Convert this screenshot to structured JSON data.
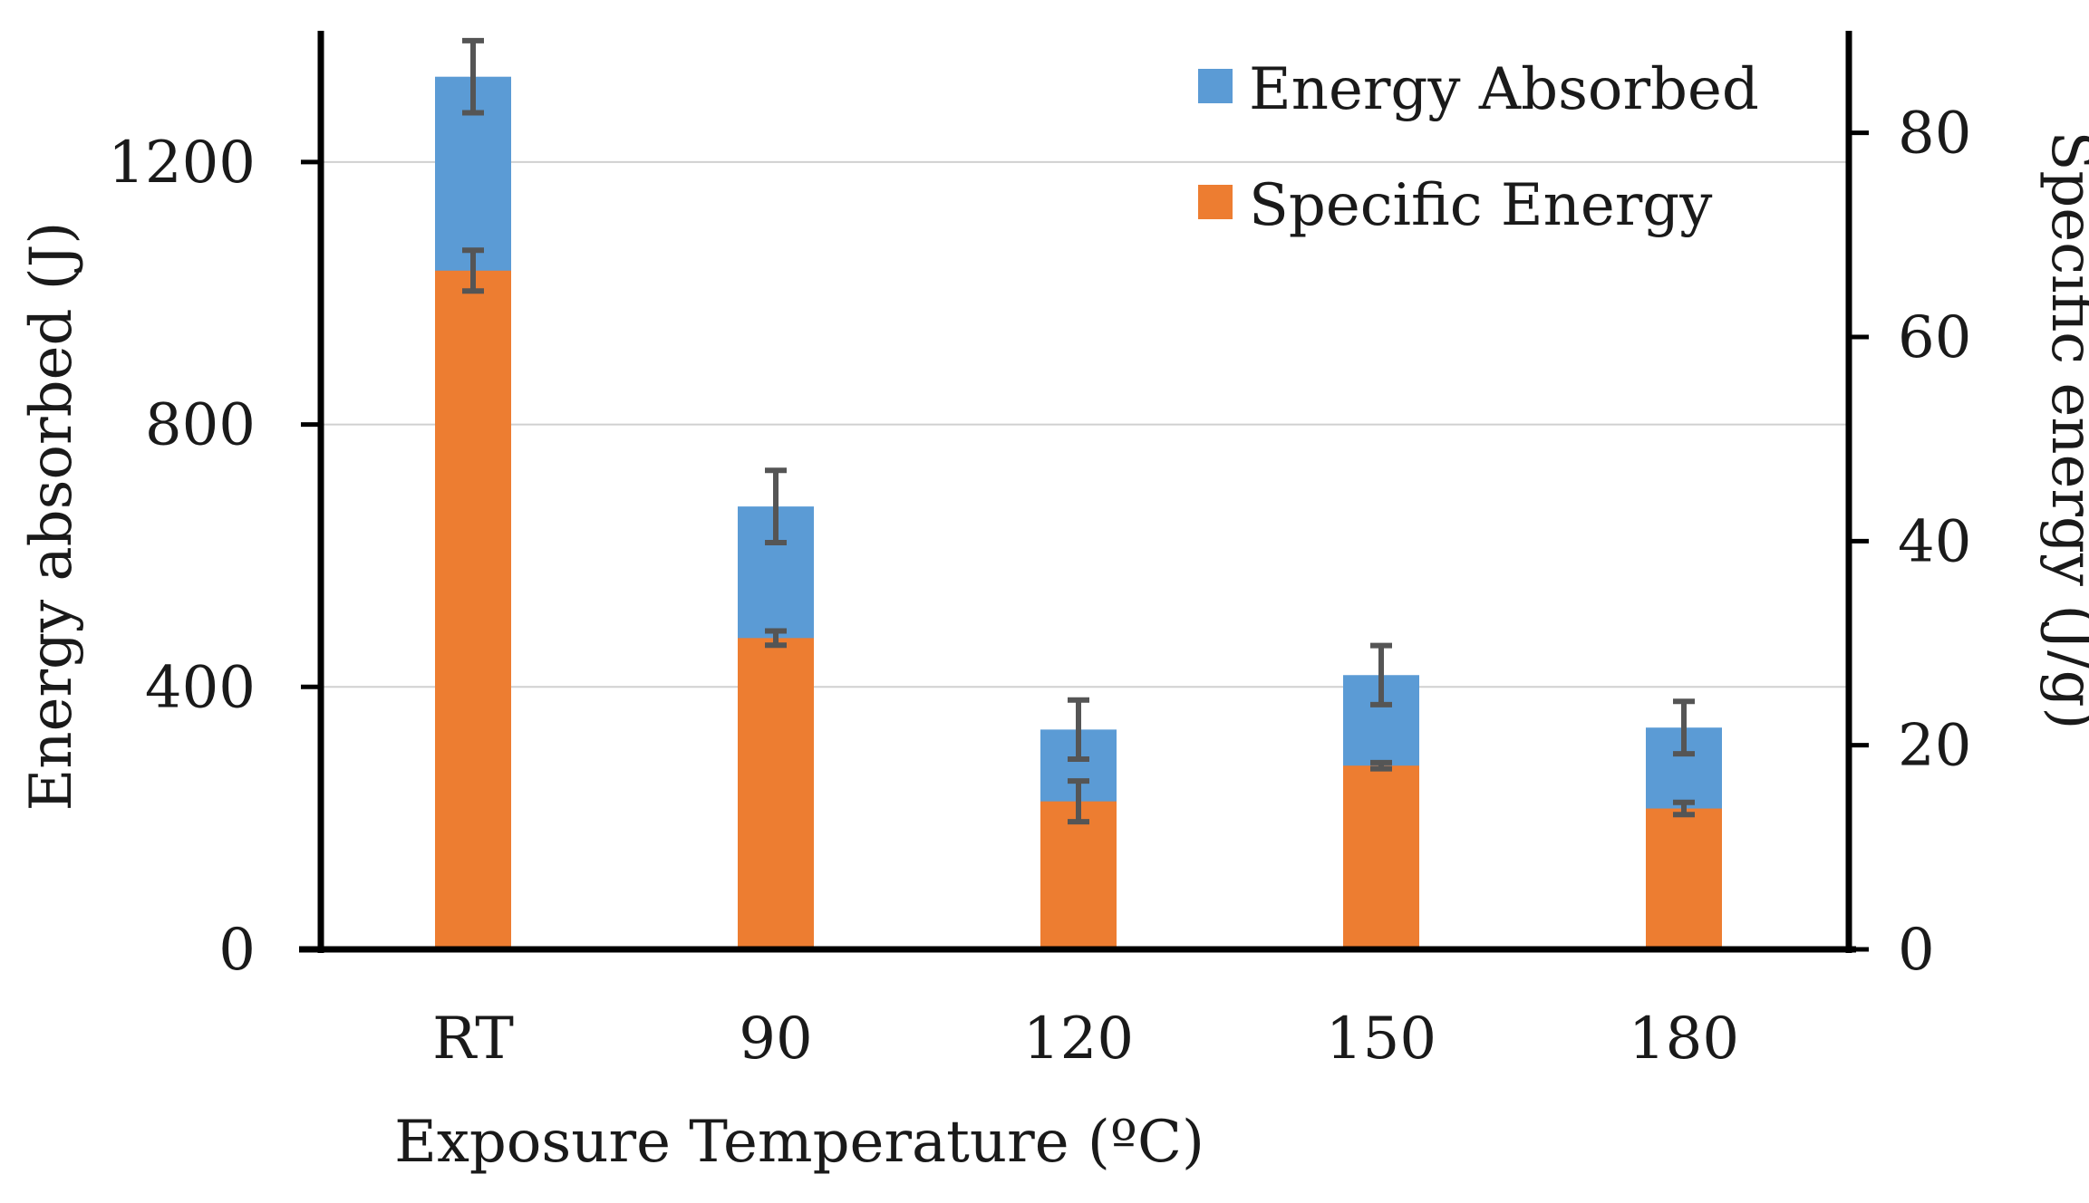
{
  "chart_data": {
    "type": "bar",
    "categories": [
      "RT",
      "90",
      "120",
      "150",
      "180"
    ],
    "xlabel": "Exposure Temperature (ºC)",
    "ylabel": "Energy absorbed (J)",
    "y2label": "Specific energy (J/g)",
    "ylim": [
      0,
      1400
    ],
    "y2lim": [
      0,
      90
    ],
    "yticks": [
      "0",
      "400",
      "800",
      "1200"
    ],
    "y2ticks": [
      "0",
      "20",
      "40",
      "60",
      "80"
    ],
    "grid": true,
    "legend_position": "top-right",
    "series": [
      {
        "name": "Energy Absorbed",
        "axis": "left",
        "color": "#5b9bd5",
        "values": [
          1330,
          675,
          335,
          418,
          338
        ],
        "errors": [
          55,
          55,
          45,
          45,
          40
        ]
      },
      {
        "name": "Specific Energy",
        "axis": "right",
        "color": "#ed7d31",
        "values": [
          66.5,
          30.5,
          14.5,
          18.0,
          13.8
        ],
        "errors": [
          2.0,
          0.7,
          2.0,
          0.3,
          0.6
        ]
      }
    ]
  }
}
